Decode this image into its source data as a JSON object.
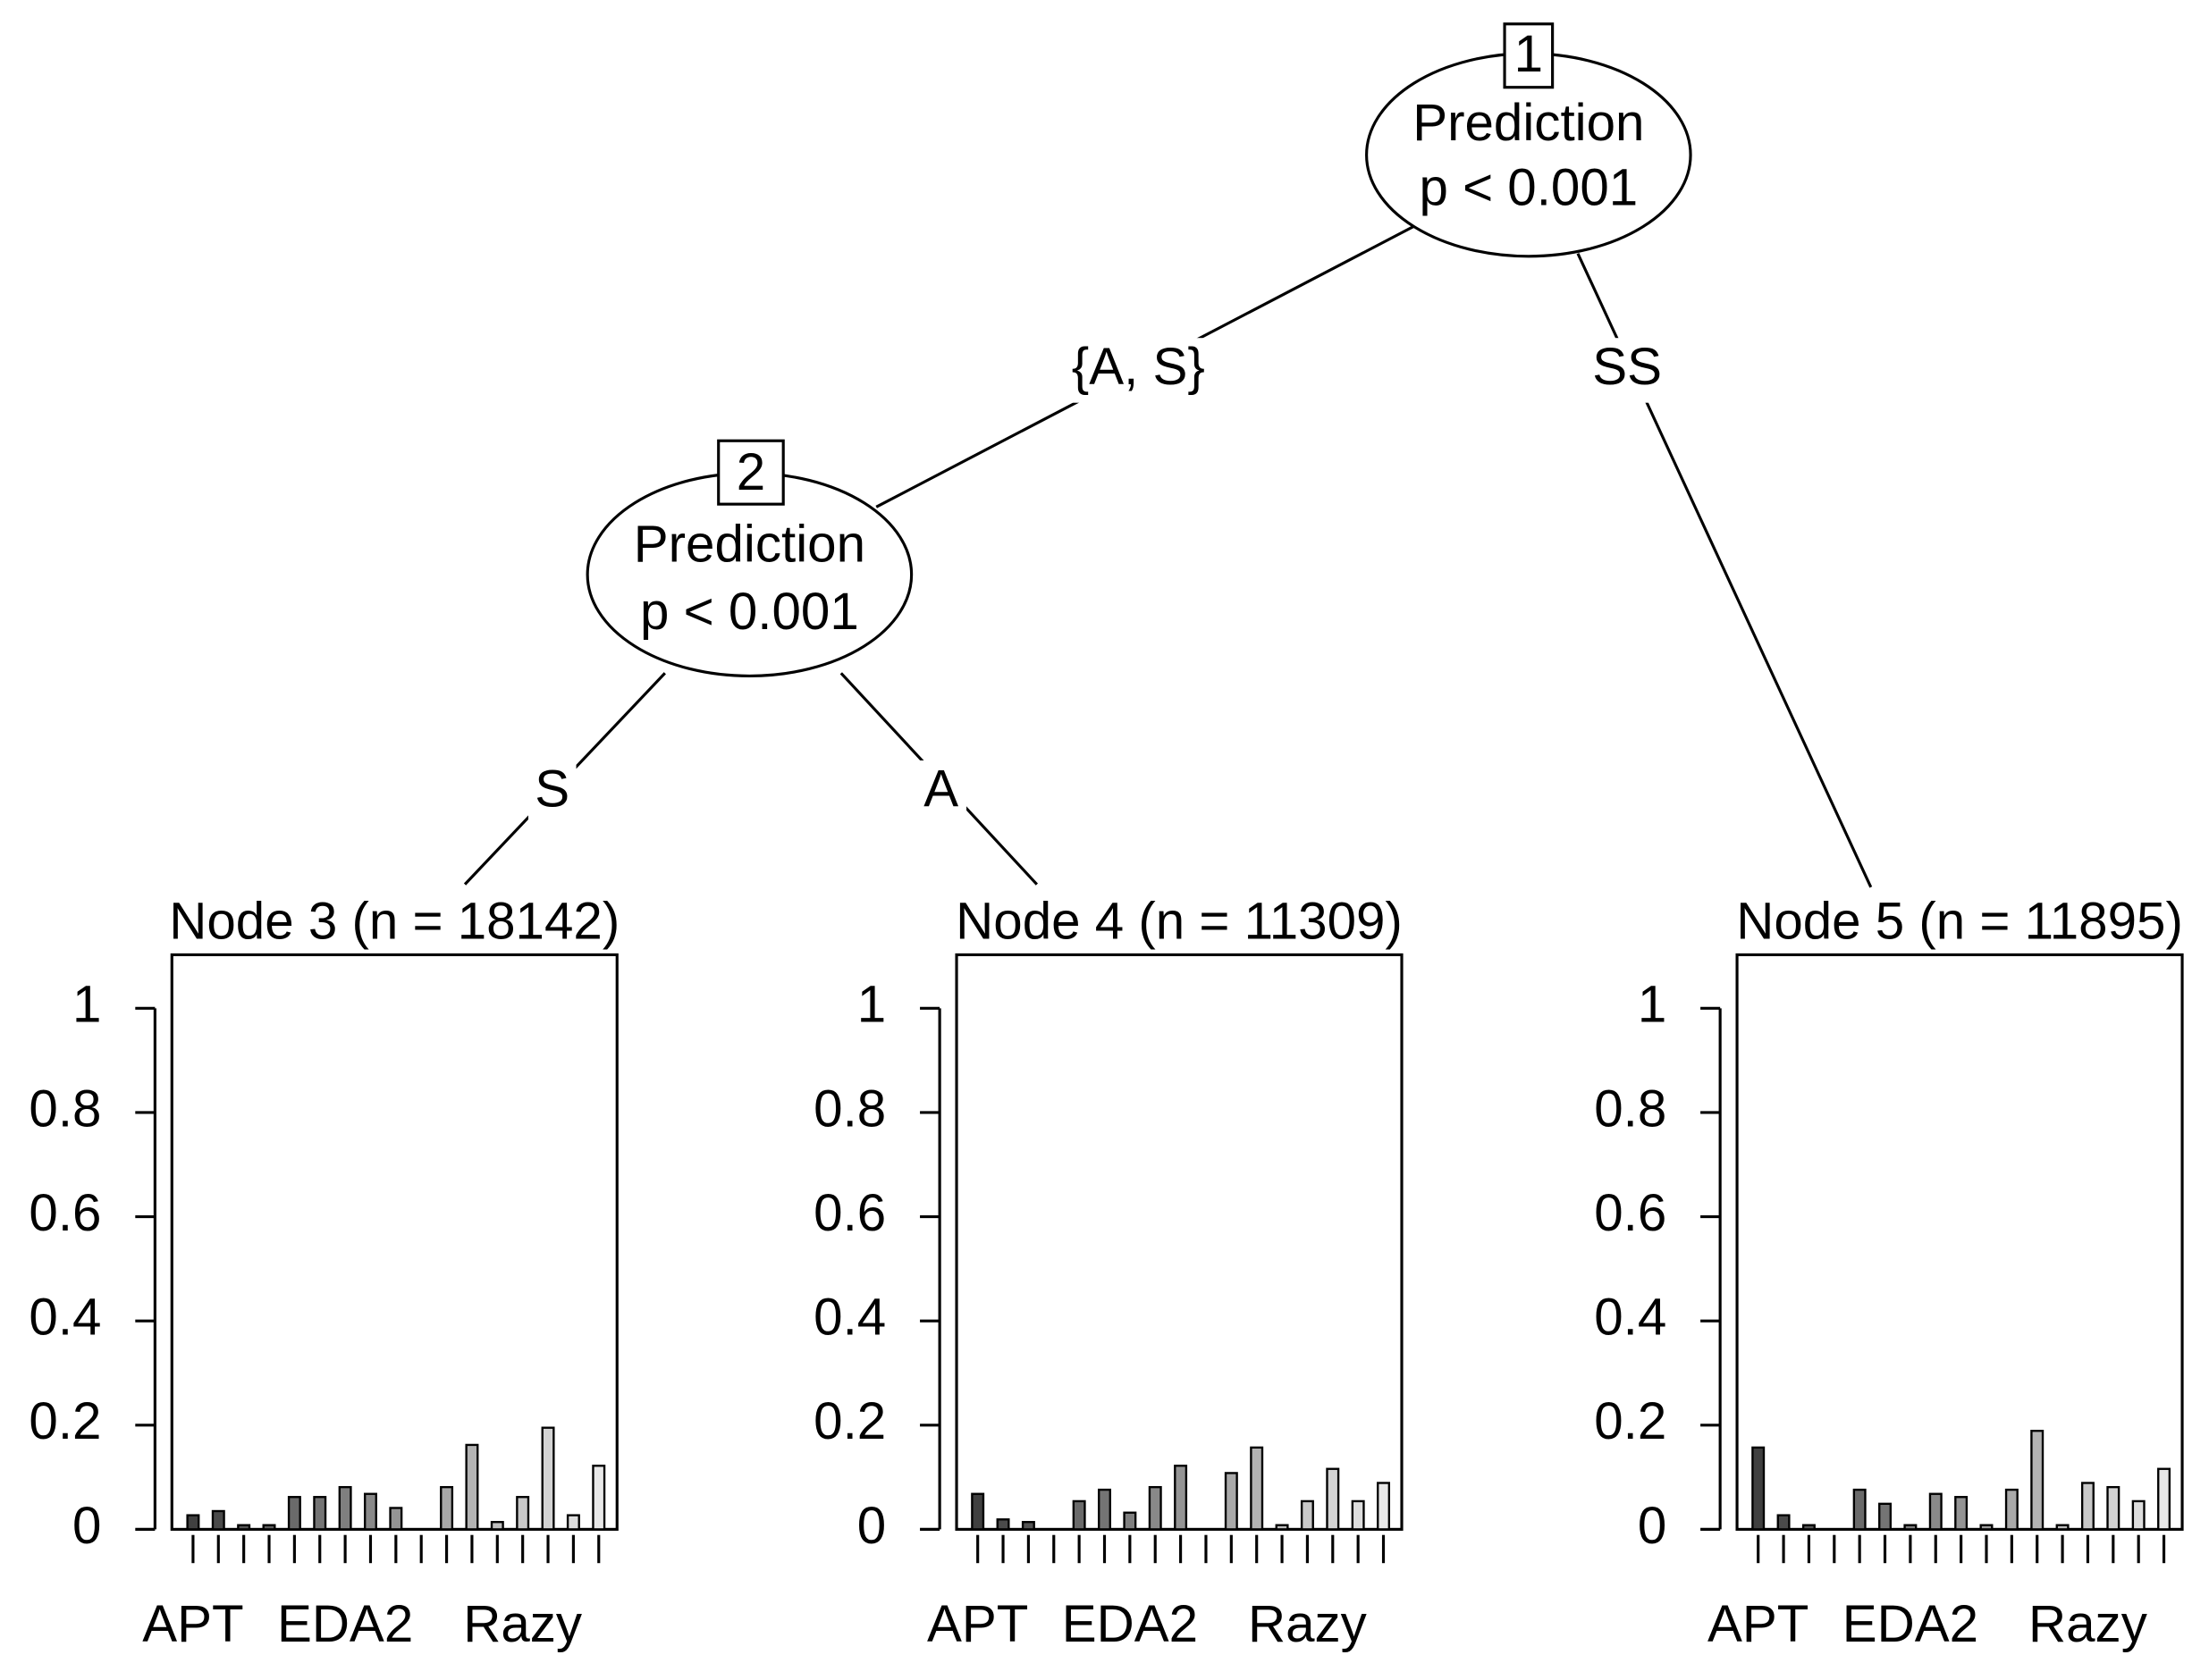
{
  "tree": {
    "nodes": [
      {
        "id": "1",
        "label": "Prediction",
        "p": "p < 0.001"
      },
      {
        "id": "2",
        "label": "Prediction",
        "p": "p < 0.001"
      }
    ],
    "edges": [
      {
        "label": "{A, S}"
      },
      {
        "label": "SS"
      },
      {
        "label": "S"
      },
      {
        "label": "A"
      }
    ]
  },
  "chart_data": [
    {
      "type": "bar",
      "title": "Node 3 (n = 18142)",
      "categories": [
        "APT",
        null,
        null,
        null,
        null,
        null,
        "EDA2",
        null,
        null,
        null,
        null,
        null,
        null,
        "Razy",
        null,
        null,
        null
      ],
      "values": [
        0.027,
        0.035,
        0.008,
        0.008,
        0.062,
        0.062,
        0.081,
        0.068,
        0.041,
        0,
        0.081,
        0.162,
        0.014,
        0.062,
        0.195,
        0.027,
        0.122
      ],
      "colors": [
        "#404040",
        "#4a4a4a",
        "#555555",
        "#5f5f5f",
        "#6a6a6a",
        "#747474",
        "#7f7f7f",
        "#898989",
        "#949494",
        "#9e9e9e",
        "#a9a9a9",
        "#b3b3b3",
        "#bebebe",
        "#c8c8c8",
        "#d3d3d3",
        "#dddddd",
        "#e8e8e8"
      ],
      "ylim": [
        0,
        1
      ],
      "yticks": [
        0,
        0.2,
        0.4,
        0.6,
        0.8,
        1
      ]
    },
    {
      "type": "bar",
      "title": "Node 4 (n = 11309)",
      "categories": [
        "APT",
        null,
        null,
        null,
        null,
        null,
        "EDA2",
        null,
        null,
        null,
        null,
        null,
        null,
        "Razy",
        null,
        null,
        null
      ],
      "values": [
        0.068,
        0.019,
        0.014,
        0,
        0.054,
        0.076,
        0.032,
        0.081,
        0.122,
        0,
        0.108,
        0.157,
        0.008,
        0.054,
        0.116,
        0.054,
        0.089
      ],
      "colors": [
        "#404040",
        "#4a4a4a",
        "#555555",
        "#5f5f5f",
        "#6a6a6a",
        "#747474",
        "#7f7f7f",
        "#898989",
        "#949494",
        "#9e9e9e",
        "#a9a9a9",
        "#b3b3b3",
        "#bebebe",
        "#c8c8c8",
        "#d3d3d3",
        "#dddddd",
        "#e8e8e8"
      ],
      "ylim": [
        0,
        1
      ],
      "yticks": [
        0,
        0.2,
        0.4,
        0.6,
        0.8,
        1
      ]
    },
    {
      "type": "bar",
      "title": "Node 5 (n = 11895)",
      "categories": [
        "APT",
        null,
        null,
        null,
        null,
        null,
        "EDA2",
        null,
        null,
        null,
        null,
        null,
        null,
        "Razy",
        null,
        null,
        null
      ],
      "values": [
        0.157,
        0.027,
        0.008,
        0,
        0.076,
        0.049,
        0.008,
        0.068,
        0.062,
        0.008,
        0.076,
        0.189,
        0.008,
        0.089,
        0.081,
        0.054,
        0.116
      ],
      "colors": [
        "#404040",
        "#4a4a4a",
        "#555555",
        "#5f5f5f",
        "#6a6a6a",
        "#747474",
        "#7f7f7f",
        "#898989",
        "#949494",
        "#9e9e9e",
        "#a9a9a9",
        "#b3b3b3",
        "#bebebe",
        "#c8c8c8",
        "#d3d3d3",
        "#dddddd",
        "#e8e8e8"
      ],
      "ylim": [
        0,
        1
      ],
      "yticks": [
        0,
        0.2,
        0.4,
        0.6,
        0.8,
        1
      ]
    }
  ]
}
